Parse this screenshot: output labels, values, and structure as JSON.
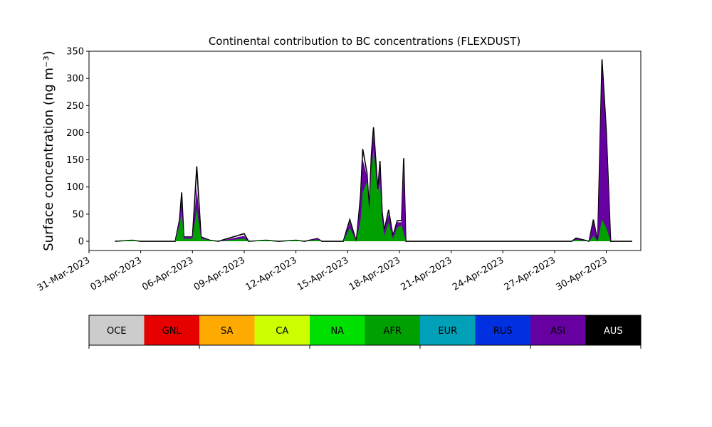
{
  "chart_data": {
    "type": "area",
    "title": "Continental contribution to BC concentrations (FLEXDUST)",
    "ylabel": "Surface concentration (ng m⁻³)",
    "xlabel": "",
    "ylim": [
      -17,
      350
    ],
    "yticks": [
      0,
      50,
      100,
      150,
      200,
      250,
      300,
      350
    ],
    "x_start": "2023-03-31",
    "x_end": "2023-05-02",
    "xticks": [
      "31-Mar-2023",
      "03-Apr-2023",
      "06-Apr-2023",
      "09-Apr-2023",
      "12-Apr-2023",
      "15-Apr-2023",
      "18-Apr-2023",
      "21-Apr-2023",
      "24-Apr-2023",
      "27-Apr-2023",
      "30-Apr-2023"
    ],
    "grid": false,
    "legend_placement": "colorbar below plot",
    "legend": [
      {
        "name": "OCE",
        "color": "#cccccc"
      },
      {
        "name": "GNL",
        "color": "#e60000"
      },
      {
        "name": "SA",
        "color": "#ffaa00"
      },
      {
        "name": "CA",
        "color": "#ccff00"
      },
      {
        "name": "NA",
        "color": "#00e000"
      },
      {
        "name": "AFR",
        "color": "#00a000"
      },
      {
        "name": "EUR",
        "color": "#00a0b8"
      },
      {
        "name": "RUS",
        "color": "#0030e0"
      },
      {
        "name": "ASI",
        "color": "#6600a0"
      },
      {
        "name": "AUS",
        "color": "#000000"
      }
    ],
    "series": [
      {
        "name": "AFR",
        "color": "#00a000",
        "points": [
          [
            "2023-04-01T12:00",
            0
          ],
          [
            "2023-04-02T12:00",
            2
          ],
          [
            "2023-04-03T00:00",
            0
          ],
          [
            "2023-04-05T00:00",
            0
          ],
          [
            "2023-04-05T06:00",
            30
          ],
          [
            "2023-04-05T09:00",
            55
          ],
          [
            "2023-04-05T12:00",
            5
          ],
          [
            "2023-04-06T00:00",
            5
          ],
          [
            "2023-04-06T06:00",
            60
          ],
          [
            "2023-04-06T12:00",
            5
          ],
          [
            "2023-04-07T00:00",
            2
          ],
          [
            "2023-04-07T12:00",
            0
          ],
          [
            "2023-04-09T00:00",
            5
          ],
          [
            "2023-04-09T06:00",
            0
          ],
          [
            "2023-04-10T06:00",
            2
          ],
          [
            "2023-04-11T00:00",
            0
          ],
          [
            "2023-04-12T00:00",
            2
          ],
          [
            "2023-04-12T12:00",
            0
          ],
          [
            "2023-04-13T06:00",
            3
          ],
          [
            "2023-04-13T12:00",
            0
          ],
          [
            "2023-04-14T18:00",
            0
          ],
          [
            "2023-04-15T03:00",
            25
          ],
          [
            "2023-04-15T12:00",
            0
          ],
          [
            "2023-04-15T18:00",
            40
          ],
          [
            "2023-04-15T21:00",
            90
          ],
          [
            "2023-04-16T03:00",
            110
          ],
          [
            "2023-04-16T06:00",
            55
          ],
          [
            "2023-04-16T09:00",
            130
          ],
          [
            "2023-04-16T12:00",
            170
          ],
          [
            "2023-04-16T18:00",
            90
          ],
          [
            "2023-04-16T21:00",
            110
          ],
          [
            "2023-04-17T00:00",
            40
          ],
          [
            "2023-04-17T03:00",
            10
          ],
          [
            "2023-04-17T09:00",
            35
          ],
          [
            "2023-04-17T15:00",
            5
          ],
          [
            "2023-04-17T21:00",
            25
          ],
          [
            "2023-04-18T03:00",
            30
          ],
          [
            "2023-04-18T06:00",
            15
          ],
          [
            "2023-04-18T09:00",
            0
          ],
          [
            "2023-04-28T00:00",
            0
          ],
          [
            "2023-04-28T06:00",
            3
          ],
          [
            "2023-04-29T00:00",
            0
          ],
          [
            "2023-04-29T06:00",
            10
          ],
          [
            "2023-04-29T12:00",
            0
          ],
          [
            "2023-04-29T18:00",
            40
          ],
          [
            "2023-04-30T00:00",
            25
          ],
          [
            "2023-04-30T06:00",
            0
          ],
          [
            "2023-05-01T12:00",
            0
          ]
        ]
      },
      {
        "name": "ASI",
        "color": "#6600a0",
        "points": [
          [
            "2023-04-01T12:00",
            0
          ],
          [
            "2023-04-02T12:00",
            2
          ],
          [
            "2023-04-03T00:00",
            0
          ],
          [
            "2023-04-05T00:00",
            0
          ],
          [
            "2023-04-05T06:00",
            40
          ],
          [
            "2023-04-05T09:00",
            80
          ],
          [
            "2023-04-05T12:00",
            8
          ],
          [
            "2023-04-06T00:00",
            8
          ],
          [
            "2023-04-06T06:00",
            100
          ],
          [
            "2023-04-06T12:00",
            8
          ],
          [
            "2023-04-07T00:00",
            2
          ],
          [
            "2023-04-07T12:00",
            0
          ],
          [
            "2023-04-09T00:00",
            10
          ],
          [
            "2023-04-09T06:00",
            0
          ],
          [
            "2023-04-10T06:00",
            2
          ],
          [
            "2023-04-11T00:00",
            0
          ],
          [
            "2023-04-12T00:00",
            2
          ],
          [
            "2023-04-12T12:00",
            0
          ],
          [
            "2023-04-13T06:00",
            5
          ],
          [
            "2023-04-13T12:00",
            0
          ],
          [
            "2023-04-14T18:00",
            0
          ],
          [
            "2023-04-15T03:00",
            35
          ],
          [
            "2023-04-15T12:00",
            0
          ],
          [
            "2023-04-15T18:00",
            80
          ],
          [
            "2023-04-15T21:00",
            150
          ],
          [
            "2023-04-16T03:00",
            120
          ],
          [
            "2023-04-16T06:00",
            60
          ],
          [
            "2023-04-16T09:00",
            150
          ],
          [
            "2023-04-16T12:00",
            200
          ],
          [
            "2023-04-16T18:00",
            90
          ],
          [
            "2023-04-16T21:00",
            140
          ],
          [
            "2023-04-17T00:00",
            50
          ],
          [
            "2023-04-17T03:00",
            20
          ],
          [
            "2023-04-17T09:00",
            50
          ],
          [
            "2023-04-17T15:00",
            10
          ],
          [
            "2023-04-17T21:00",
            35
          ],
          [
            "2023-04-18T03:00",
            35
          ],
          [
            "2023-04-18T06:00",
            145
          ],
          [
            "2023-04-18T09:00",
            0
          ],
          [
            "2023-04-28T00:00",
            0
          ],
          [
            "2023-04-28T06:00",
            5
          ],
          [
            "2023-04-29T00:00",
            0
          ],
          [
            "2023-04-29T06:00",
            35
          ],
          [
            "2023-04-29T12:00",
            0
          ],
          [
            "2023-04-29T18:00",
            320
          ],
          [
            "2023-04-30T00:00",
            195
          ],
          [
            "2023-04-30T06:00",
            0
          ],
          [
            "2023-05-01T12:00",
            0
          ]
        ]
      },
      {
        "name": "AUS",
        "color": "#000000",
        "points": [
          [
            "2023-04-01T12:00",
            0
          ],
          [
            "2023-04-02T12:00",
            2
          ],
          [
            "2023-04-03T00:00",
            0
          ],
          [
            "2023-04-05T00:00",
            0
          ],
          [
            "2023-04-05T06:00",
            40
          ],
          [
            "2023-04-05T09:00",
            90
          ],
          [
            "2023-04-05T12:00",
            8
          ],
          [
            "2023-04-06T00:00",
            8
          ],
          [
            "2023-04-06T06:00",
            138
          ],
          [
            "2023-04-06T12:00",
            8
          ],
          [
            "2023-04-07T00:00",
            2
          ],
          [
            "2023-04-07T12:00",
            0
          ],
          [
            "2023-04-09T00:00",
            14
          ],
          [
            "2023-04-09T06:00",
            0
          ],
          [
            "2023-04-10T06:00",
            2
          ],
          [
            "2023-04-11T00:00",
            0
          ],
          [
            "2023-04-12T00:00",
            2
          ],
          [
            "2023-04-12T12:00",
            0
          ],
          [
            "2023-04-13T06:00",
            5
          ],
          [
            "2023-04-13T12:00",
            0
          ],
          [
            "2023-04-14T18:00",
            0
          ],
          [
            "2023-04-15T03:00",
            40
          ],
          [
            "2023-04-15T12:00",
            0
          ],
          [
            "2023-04-15T18:00",
            85
          ],
          [
            "2023-04-15T21:00",
            170
          ],
          [
            "2023-04-16T03:00",
            125
          ],
          [
            "2023-04-16T06:00",
            60
          ],
          [
            "2023-04-16T09:00",
            160
          ],
          [
            "2023-04-16T12:00",
            210
          ],
          [
            "2023-04-16T18:00",
            95
          ],
          [
            "2023-04-16T21:00",
            148
          ],
          [
            "2023-04-17T00:00",
            55
          ],
          [
            "2023-04-17T03:00",
            20
          ],
          [
            "2023-04-17T09:00",
            58
          ],
          [
            "2023-04-17T15:00",
            10
          ],
          [
            "2023-04-17T21:00",
            38
          ],
          [
            "2023-04-18T03:00",
            38
          ],
          [
            "2023-04-18T06:00",
            153
          ],
          [
            "2023-04-18T09:00",
            0
          ],
          [
            "2023-04-28T00:00",
            0
          ],
          [
            "2023-04-28T06:00",
            6
          ],
          [
            "2023-04-29T00:00",
            0
          ],
          [
            "2023-04-29T06:00",
            40
          ],
          [
            "2023-04-29T12:00",
            0
          ],
          [
            "2023-04-29T18:00",
            335
          ],
          [
            "2023-04-30T00:00",
            203
          ],
          [
            "2023-04-30T06:00",
            0
          ],
          [
            "2023-05-01T12:00",
            0
          ]
        ]
      }
    ]
  }
}
